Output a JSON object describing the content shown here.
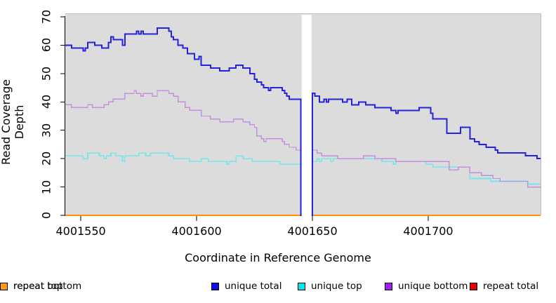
{
  "chart_data": {
    "type": "line",
    "subtype": "step",
    "title": "",
    "xlabel": "Coordinate in Reference Genome",
    "ylabel": "Read Coverage Depth",
    "xlim": [
      4001543.3,
      4001748.5
    ],
    "ylim": [
      0,
      71.25
    ],
    "x_tick_values": [
      4001550,
      4001600,
      4001650,
      4001700
    ],
    "x_tick_labels": [
      "4001550",
      "4001600",
      "4001650",
      "4001700"
    ],
    "y_tick_values": [
      0,
      10,
      20,
      30,
      40,
      50,
      60,
      70
    ],
    "y_tick_labels": [
      "0",
      "10",
      "20",
      "30",
      "40",
      "50",
      "60",
      "70"
    ],
    "plot_bg_color": "#dcdcdc",
    "axis_color": "#000000",
    "grid": "off",
    "legend_position": "bottom",
    "gap_band": {
      "x_start": 4001645.35,
      "x_end": 4001649.6,
      "color": "#ffffff"
    },
    "series": [
      {
        "name": "repeat total",
        "line_color": "#dd0000",
        "line_width": 2,
        "points": [
          [
            4001543,
            0
          ]
        ]
      },
      {
        "name": "repeat top",
        "line_color": "#ffff00",
        "line_width": 2,
        "points": [
          [
            4001543,
            0
          ]
        ]
      },
      {
        "name": "repeat bottom",
        "line_color": "#ff9100",
        "line_width": 2,
        "points": [
          [
            4001543,
            0
          ]
        ]
      },
      {
        "name": "unique top",
        "line_color": "#74e6ec",
        "line_width": 1.6,
        "points": [
          [
            4001543,
            21
          ],
          [
            4001551,
            20
          ],
          [
            4001553,
            22
          ],
          [
            4001558,
            21
          ],
          [
            4001560,
            20
          ],
          [
            4001561,
            21
          ],
          [
            4001563,
            22
          ],
          [
            4001565,
            21
          ],
          [
            4001568,
            19
          ],
          [
            4001569,
            21
          ],
          [
            4001575,
            22
          ],
          [
            4001578,
            21
          ],
          [
            4001580,
            22
          ],
          [
            4001588,
            21
          ],
          [
            4001590,
            20
          ],
          [
            4001597,
            19
          ],
          [
            4001602,
            20
          ],
          [
            4001605,
            19
          ],
          [
            4001613,
            18
          ],
          [
            4001614,
            19
          ],
          [
            4001617,
            21
          ],
          [
            4001620,
            20
          ],
          [
            4001624,
            19
          ],
          [
            4001636,
            18
          ],
          [
            4001645,
            0
          ],
          [
            4001650,
            19
          ],
          [
            4001652,
            20
          ],
          [
            4001653,
            19
          ],
          [
            4001654,
            20
          ],
          [
            4001658,
            19
          ],
          [
            4001659,
            20
          ],
          [
            4001680,
            19
          ],
          [
            4001685,
            18
          ],
          [
            4001686,
            19
          ],
          [
            4001699,
            18
          ],
          [
            4001702,
            17
          ],
          [
            4001718,
            13
          ],
          [
            4001727,
            12
          ],
          [
            4001743,
            11
          ]
        ]
      },
      {
        "name": "unique bottom",
        "line_color": "#c48fe0",
        "line_width": 1.4,
        "points": [
          [
            4001543,
            39
          ],
          [
            4001546,
            38
          ],
          [
            4001553,
            39
          ],
          [
            4001555,
            38
          ],
          [
            4001560,
            39
          ],
          [
            4001562,
            40
          ],
          [
            4001564,
            41
          ],
          [
            4001569,
            43
          ],
          [
            4001573,
            44
          ],
          [
            4001574,
            43
          ],
          [
            4001576,
            42
          ],
          [
            4001577,
            43
          ],
          [
            4001581,
            42
          ],
          [
            4001583,
            44
          ],
          [
            4001588,
            43
          ],
          [
            4001590,
            42
          ],
          [
            4001592,
            40
          ],
          [
            4001595,
            38
          ],
          [
            4001597,
            37
          ],
          [
            4001602,
            35
          ],
          [
            4001606,
            34
          ],
          [
            4001610,
            33
          ],
          [
            4001616,
            34
          ],
          [
            4001620,
            33
          ],
          [
            4001623,
            32
          ],
          [
            4001625,
            31
          ],
          [
            4001626,
            28
          ],
          [
            4001628,
            27
          ],
          [
            4001629,
            26
          ],
          [
            4001630,
            27
          ],
          [
            4001637,
            26
          ],
          [
            4001638,
            25
          ],
          [
            4001640,
            24
          ],
          [
            4001643,
            23
          ],
          [
            4001645,
            0
          ],
          [
            4001650,
            23
          ],
          [
            4001652,
            22
          ],
          [
            4001654,
            21
          ],
          [
            4001661,
            20
          ],
          [
            4001672,
            21
          ],
          [
            4001677,
            20
          ],
          [
            4001686,
            19
          ],
          [
            4001709,
            16
          ],
          [
            4001713,
            17
          ],
          [
            4001718,
            15
          ],
          [
            4001723,
            14
          ],
          [
            4001728,
            13
          ],
          [
            4001731,
            12
          ],
          [
            4001743,
            10
          ]
        ]
      },
      {
        "name": "unique total",
        "line_color": "#2424dd",
        "line_width": 2,
        "points": [
          [
            4001543,
            60
          ],
          [
            4001546,
            59
          ],
          [
            4001551,
            58
          ],
          [
            4001552,
            59
          ],
          [
            4001553,
            61
          ],
          [
            4001556,
            60
          ],
          [
            4001559,
            59
          ],
          [
            4001562,
            61
          ],
          [
            4001563,
            63
          ],
          [
            4001564,
            62
          ],
          [
            4001568,
            60
          ],
          [
            4001569,
            64
          ],
          [
            4001574,
            65
          ],
          [
            4001575,
            64
          ],
          [
            4001576,
            65
          ],
          [
            4001577,
            64
          ],
          [
            4001583,
            66
          ],
          [
            4001588,
            65
          ],
          [
            4001589,
            63
          ],
          [
            4001590,
            62
          ],
          [
            4001592,
            60
          ],
          [
            4001594,
            59
          ],
          [
            4001596,
            57
          ],
          [
            4001599,
            55
          ],
          [
            4001601,
            56
          ],
          [
            4001602,
            53
          ],
          [
            4001606,
            52
          ],
          [
            4001610,
            51
          ],
          [
            4001614,
            52
          ],
          [
            4001617,
            53
          ],
          [
            4001620,
            52
          ],
          [
            4001623,
            50
          ],
          [
            4001625,
            48
          ],
          [
            4001626,
            47
          ],
          [
            4001628,
            46
          ],
          [
            4001629,
            45
          ],
          [
            4001631,
            44
          ],
          [
            4001632,
            45
          ],
          [
            4001637,
            44
          ],
          [
            4001638,
            43
          ],
          [
            4001639,
            42
          ],
          [
            4001640,
            41
          ],
          [
            4001645,
            0
          ],
          [
            4001650,
            43
          ],
          [
            4001651,
            42
          ],
          [
            4001653,
            40
          ],
          [
            4001655,
            41
          ],
          [
            4001656,
            40
          ],
          [
            4001657,
            41
          ],
          [
            4001663,
            40
          ],
          [
            4001665,
            41
          ],
          [
            4001667,
            39
          ],
          [
            4001670,
            40
          ],
          [
            4001673,
            39
          ],
          [
            4001677,
            38
          ],
          [
            4001684,
            37
          ],
          [
            4001686,
            36
          ],
          [
            4001687,
            37
          ],
          [
            4001696,
            38
          ],
          [
            4001701,
            36
          ],
          [
            4001702,
            34
          ],
          [
            4001708,
            29
          ],
          [
            4001714,
            31
          ],
          [
            4001718,
            27
          ],
          [
            4001720,
            26
          ],
          [
            4001722,
            25
          ],
          [
            4001725,
            24
          ],
          [
            4001729,
            23
          ],
          [
            4001730,
            22
          ],
          [
            4001742,
            21
          ],
          [
            4001747,
            20
          ]
        ]
      }
    ]
  },
  "legend": {
    "items": [
      {
        "label": "unique total",
        "color": "#0d0df0"
      },
      {
        "label": "unique top",
        "color": "#00e8ee"
      },
      {
        "label": "unique bottom",
        "color": "#a020f0"
      },
      {
        "label": "repeat total",
        "color": "#e80000"
      },
      {
        "label": "repeat top",
        "color": "#ffff00"
      },
      {
        "label": "repeat bottom",
        "color": "#ff9912"
      }
    ]
  }
}
